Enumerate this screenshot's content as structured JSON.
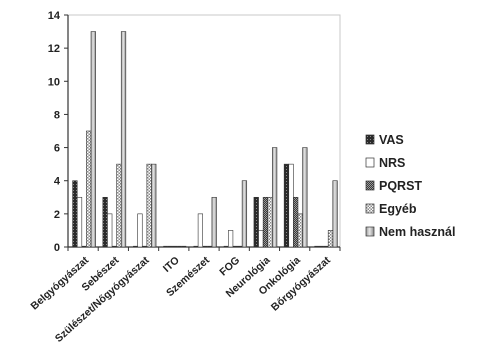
{
  "chart_data": {
    "type": "bar",
    "title": "",
    "xlabel": "",
    "ylabel": "",
    "ylim": [
      0,
      14
    ],
    "yticks": [
      0,
      2,
      4,
      6,
      8,
      10,
      12,
      14
    ],
    "grid": false,
    "legend_position": "right",
    "categories": [
      "Belgyógyászat",
      "Sebészet",
      "Szülészet/Nőgyógyászat",
      "ITO",
      "Szemészet",
      "FOG",
      "Neurológia",
      "Onkológia",
      "Bőrgyógyászat"
    ],
    "series": [
      {
        "name": "VAS",
        "values": [
          4,
          3,
          0,
          0,
          0,
          0,
          3,
          5,
          0
        ],
        "pattern": "dark-dots"
      },
      {
        "name": "NRS",
        "values": [
          3,
          2,
          2,
          0,
          2,
          1,
          1,
          5,
          0
        ],
        "pattern": "white"
      },
      {
        "name": "PQRST",
        "values": [
          0,
          0,
          0,
          0,
          0,
          0,
          3,
          3,
          0
        ],
        "pattern": "dark-checker"
      },
      {
        "name": "Egyéb",
        "values": [
          7,
          5,
          5,
          0,
          0,
          0,
          3,
          2,
          1
        ],
        "pattern": "light-checker"
      },
      {
        "name": "Nem használ",
        "values": [
          13,
          13,
          5,
          0,
          3,
          4,
          6,
          6,
          4
        ],
        "pattern": "gray-gradient"
      }
    ]
  }
}
